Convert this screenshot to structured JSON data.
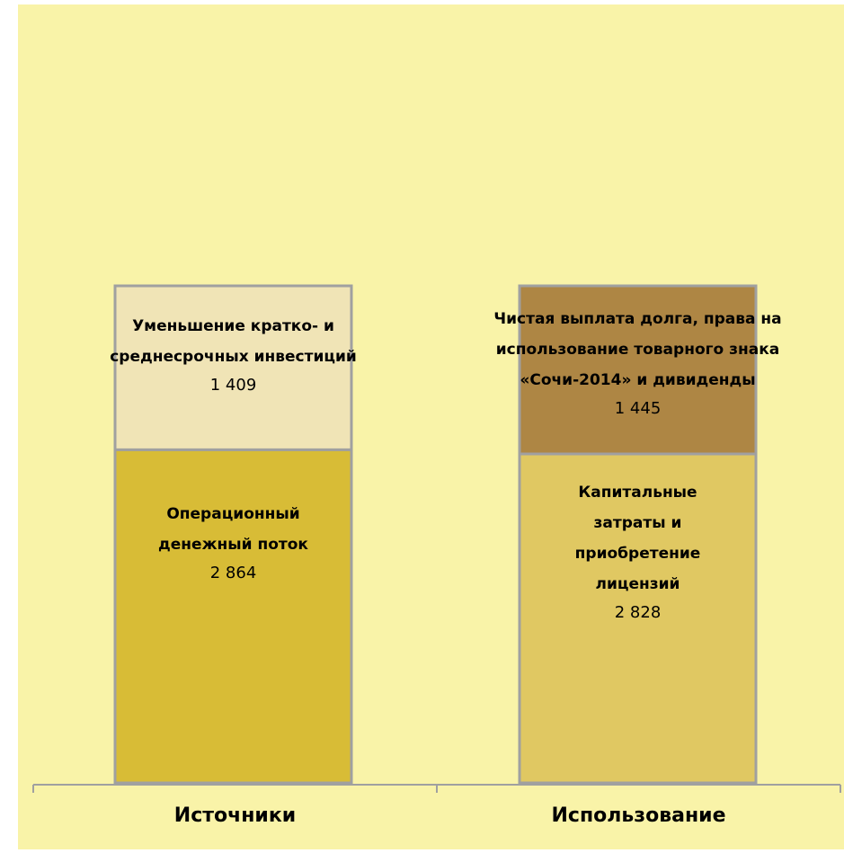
{
  "chart_data": {
    "type": "stacked-bar",
    "categories": [
      "Источники",
      "Использование"
    ],
    "series": [
      {
        "name": "Операционный денежный поток",
        "color": "#d8bc36",
        "values": [
          2864,
          null
        ],
        "value_labels": [
          "2 864",
          null
        ]
      },
      {
        "name": "Уменьшение кратко- и среднесрочных инвестиций",
        "color": "#f0e4b6",
        "values": [
          1409,
          null
        ],
        "value_labels": [
          "1 409",
          null
        ]
      },
      {
        "name": "Капитальные затраты и приобретение лицензий",
        "color": "#e0c862",
        "values": [
          null,
          2828
        ],
        "value_labels": [
          null,
          "2 828"
        ]
      },
      {
        "name": "Чистая выплата долга, права на использование товарного знака «Сочи-2014» и дивиденды",
        "color": "#ae8644",
        "values": [
          null,
          1445
        ],
        "value_labels": [
          null,
          "1 445"
        ]
      }
    ]
  }
}
